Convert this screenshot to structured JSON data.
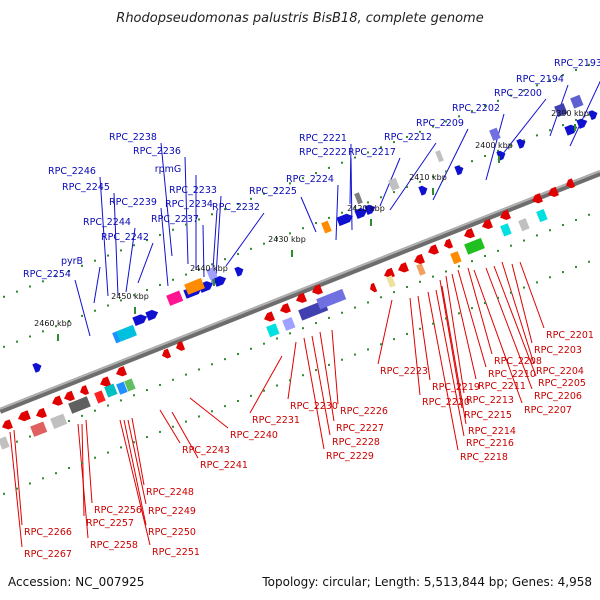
{
  "title": "Rhodopseudomonas palustris BisB18, complete genome",
  "footer": {
    "accession": "Accession: NC_007925",
    "summary": "Topology: circular; Length: 5,513,844 bp; Genes: 4,958"
  },
  "scale": {
    "ticks": [
      "2390 kbp",
      "2400 kbp",
      "2410 kbp",
      "2420 kbp",
      "2430 kbp",
      "2440 kbp",
      "2450 kbp",
      "2460 kbp"
    ]
  },
  "genes_top": [
    "RPC_2193",
    "RPC_2194",
    "RPC_2200",
    "RPC_2202",
    "RPC_2209",
    "RPC_2212",
    "RPC_2217",
    "RPC_2221",
    "RPC_2222",
    "RPC_2224",
    "RPC_2225",
    "RPC_2232",
    "RPC_2233",
    "RPC_2234",
    "RPC_2237",
    "RPC_2238",
    "RPC_2236",
    "rpmG",
    "RPC_2239",
    "RPC_2242",
    "RPC_2244",
    "RPC_2245",
    "RPC_2246",
    "pyrB",
    "RPC_2254"
  ],
  "genes_bottom": [
    "RPC_2201",
    "RPC_2203",
    "RPC_2204",
    "RPC_2205",
    "RPC_2206",
    "RPC_2207",
    "RPC_2208",
    "RPC_2210",
    "RPC_2211",
    "RPC_2213",
    "RPC_2214",
    "RPC_2215",
    "RPC_2216",
    "RPC_2218",
    "RPC_2219",
    "RPC_2220",
    "RPC_2223",
    "RPC_2226",
    "RPC_2227",
    "RPC_2228",
    "RPC_2229",
    "RPC_2230",
    "RPC_2231",
    "RPC_2240",
    "RPC_2241",
    "RPC_2243",
    "RPC_2248",
    "RPC_2249",
    "RPC_2250",
    "RPC_2251",
    "RPC_2256",
    "RPC_2257",
    "RPC_2258",
    "RPC_2266",
    "RPC_2267"
  ],
  "colors": {
    "forward_strand": "#1010d0",
    "reverse_strand": "#e00000",
    "genome_line": "#8a8a8a",
    "tick": "#2e8b2e"
  }
}
